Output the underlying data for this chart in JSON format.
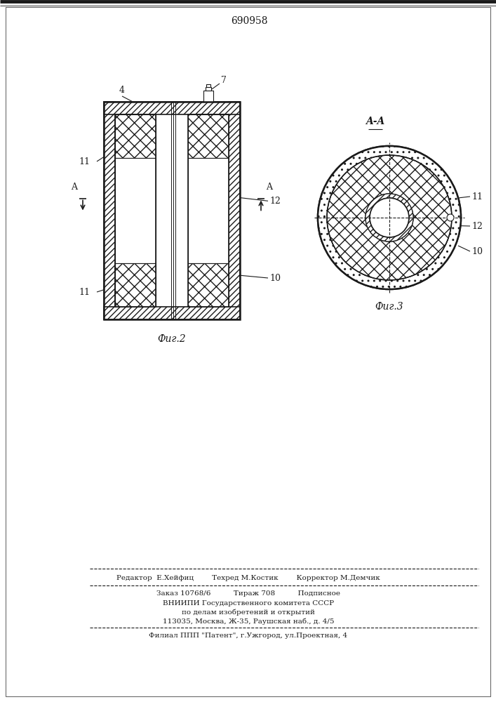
{
  "patent_number": "690958",
  "bg_color": "#ffffff",
  "line_color": "#1a1a1a",
  "fig2_label": "Фиг.2",
  "fig3_label": "Фиг.3",
  "section_label": "A-A",
  "footer_line1": "Редактор  Е.Хейфиц        Техред М.Костик        Корректор М.Демчик",
  "footer_line2": "Заказ 10768/6          Тираж 708          Подписное",
  "footer_line3": "ВНИИПИ Государственного комитета СССР",
  "footer_line4": "по делам изобретений и открытий",
  "footer_line5": "113035, Москва, Ж-35, Раушская наб., д. 4/5",
  "footer_line6": "Филиал ППП \"Патент\", г.Ужгород, ул.Проектная, 4"
}
